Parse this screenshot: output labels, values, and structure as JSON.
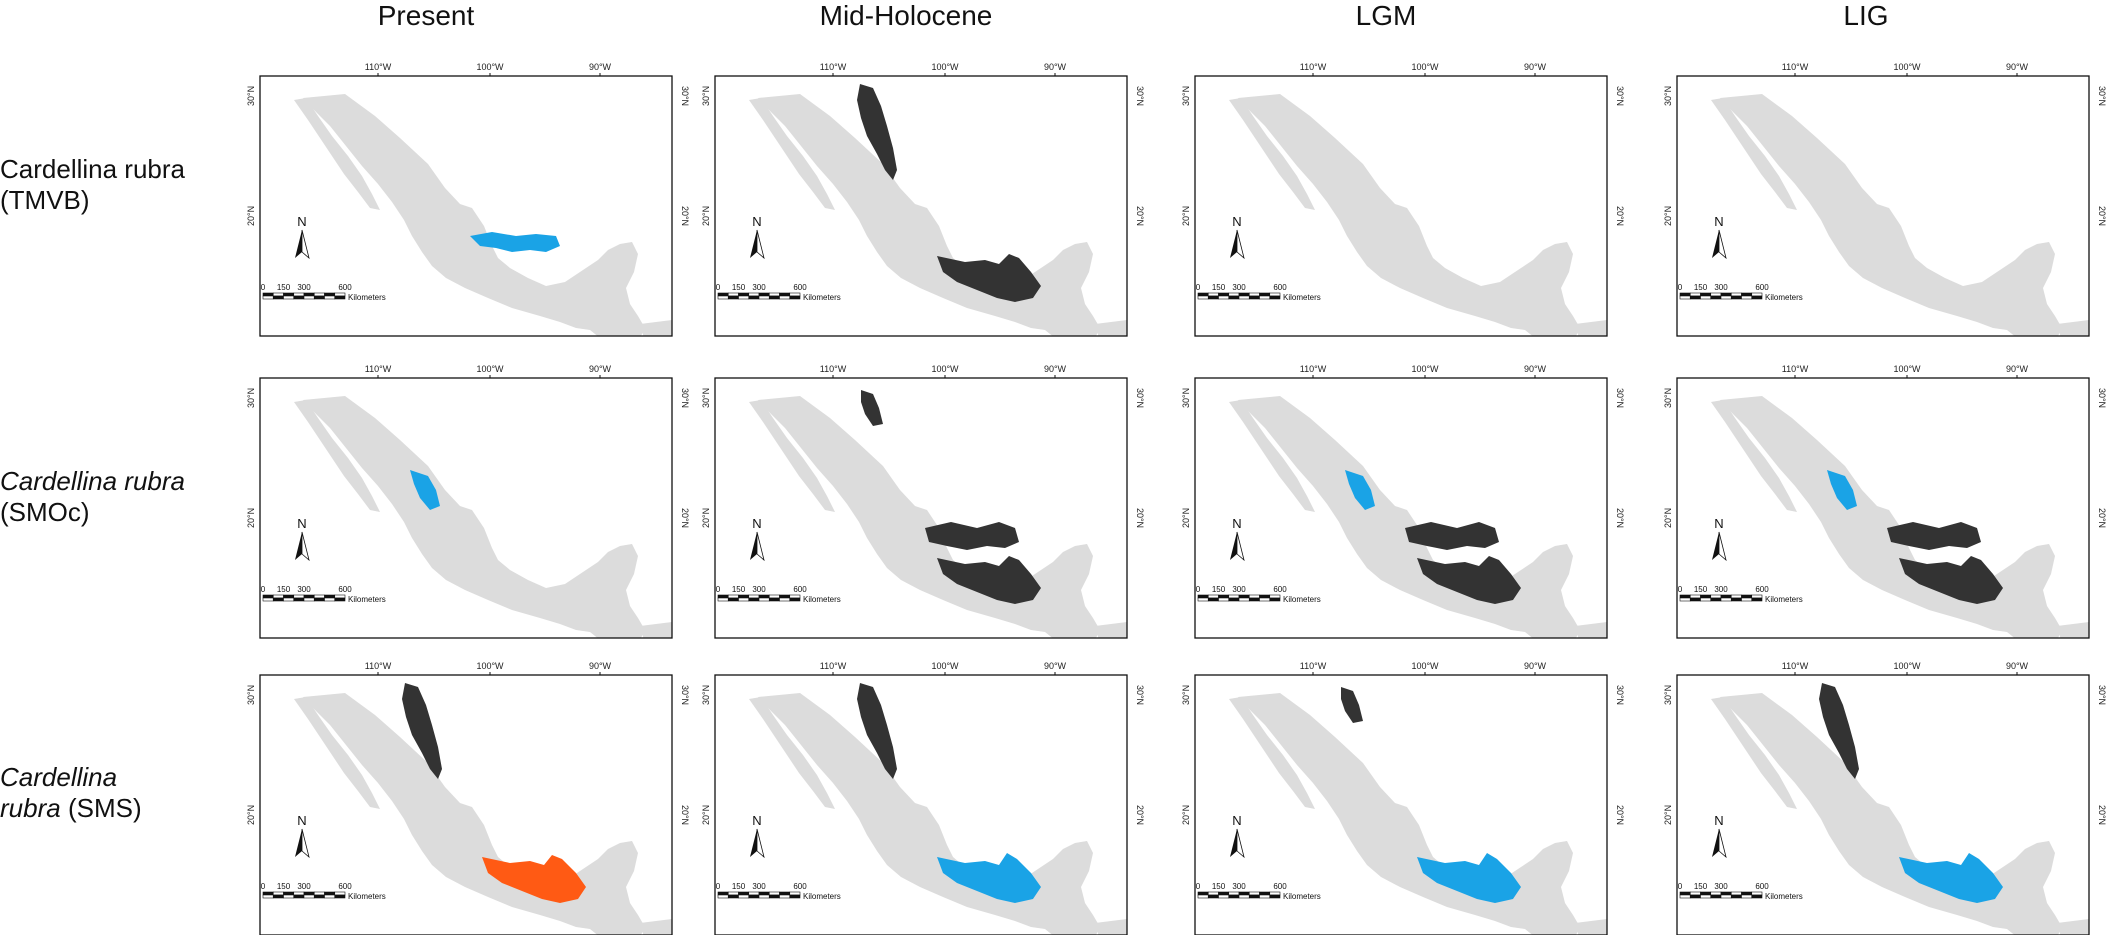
{
  "columns": [
    "Present",
    "Mid-Holocene",
    "LGM",
    "LIG"
  ],
  "rows": [
    {
      "species": "Cardellina rubra",
      "population": "(TMVB)",
      "species_italic": false
    },
    {
      "species": "Cardellina rubra",
      "population": "(SMOc)",
      "species_italic": true
    },
    {
      "species": "Cardellina",
      "species_line2": "rubra",
      "population": "(SMS)",
      "species_italic": true
    }
  ],
  "map_labels": {
    "lon_ticks": [
      "110°W",
      "100°W",
      "90°W"
    ],
    "lat_ticks": [
      "30°N",
      "20°N"
    ],
    "north": "N",
    "scale_ticks": [
      "0",
      "150",
      "300",
      "600"
    ],
    "scale_unit": "Kilometers"
  },
  "colors": {
    "land": "#dcdcdc",
    "black_distribution": "#333333",
    "blue_distribution": "#1aa3e6",
    "orange_distribution": "#ff5a14",
    "frame": "#111111"
  },
  "panel_highlights": [
    [
      "tmvb-blue",
      "smw-black+sms-black",
      "none",
      "none"
    ],
    [
      "smw-blue-small",
      "smw-black-small+tmvb-black+sms-black",
      "smw-blue-small+tmvb-black+sms-black",
      "smw-blue-small+tmvb-black+sms-black"
    ],
    [
      "smw-black+sms-orange",
      "smw-black+sms-blue",
      "smw-black-small+sms-blue",
      "smw-black+sms-blue"
    ]
  ]
}
